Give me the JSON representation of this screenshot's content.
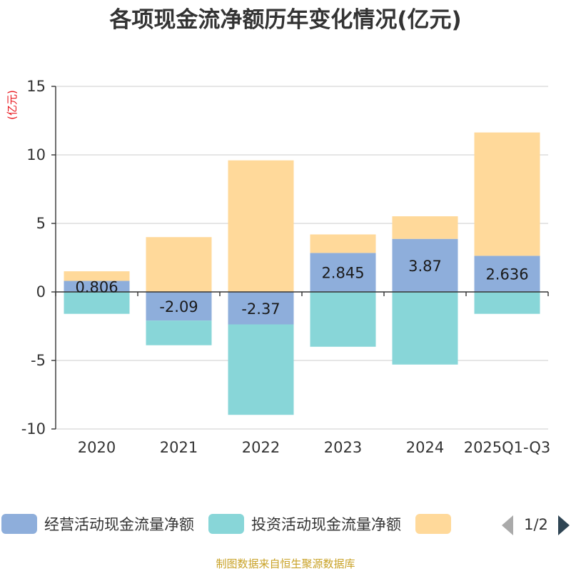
{
  "chart_data": {
    "type": "bar",
    "stacked": true,
    "title": "各项现金流净额历年变化情况(亿元)",
    "ylabel": "(亿元)",
    "xlabel": "",
    "ylim": [
      -10,
      15
    ],
    "yticks": [
      15,
      10,
      5,
      0,
      -5,
      -10
    ],
    "grid": true,
    "categories": [
      "2020",
      "2021",
      "2022",
      "2023",
      "2024",
      "2025Q1-Q3"
    ],
    "series": [
      {
        "name": "经营活动现金流量净额",
        "color": "#8eaedb",
        "values": [
          0.806,
          -2.09,
          -2.37,
          2.845,
          3.87,
          2.636
        ],
        "labels": [
          "0.806",
          "-2.09",
          "-2.37",
          "2.845",
          "3.87",
          "2.636"
        ]
      },
      {
        "name": "投资活动现金流量净额",
        "color": "#88d6d8",
        "values": [
          -1.6,
          -1.8,
          -6.6,
          -4.0,
          -5.3,
          -1.6
        ]
      },
      {
        "name": "",
        "color": "#ffd99a",
        "values": [
          0.7,
          4.0,
          9.6,
          1.35,
          1.65,
          9.0
        ]
      }
    ],
    "legend": {
      "position": "bottom",
      "page_indicator": "1/2"
    },
    "source_note": "制图数据来自恒生聚源数据库"
  }
}
